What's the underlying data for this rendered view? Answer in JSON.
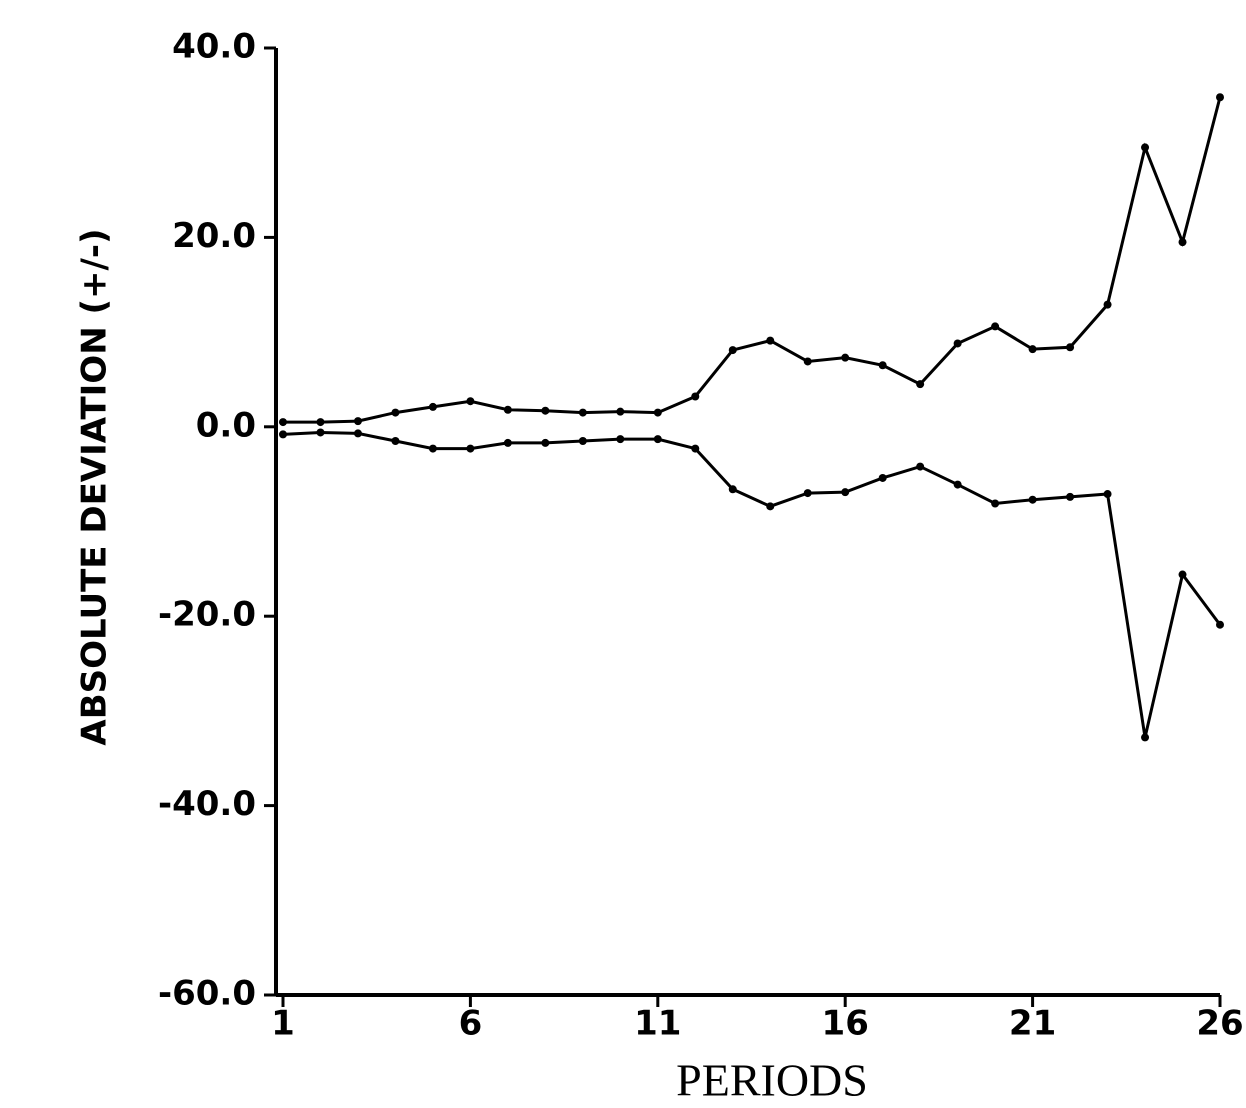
{
  "chart_data": {
    "type": "line",
    "y_label": "ABSOLUTE DEVIATION (+/-)",
    "x_label": "PERIODS",
    "x": [
      1,
      2,
      3,
      4,
      5,
      6,
      7,
      8,
      9,
      10,
      11,
      12,
      13,
      14,
      15,
      16,
      17,
      18,
      19,
      20,
      21,
      22,
      23,
      24,
      25,
      26
    ],
    "series": [
      {
        "color": "#000000",
        "values": [
          0.5,
          0.5,
          0.6,
          1.5,
          2.1,
          2.7,
          1.8,
          1.7,
          1.5,
          1.6,
          1.5,
          3.2,
          8.1,
          9.1,
          6.9,
          7.3,
          6.5,
          4.5,
          8.8,
          10.6,
          8.2,
          8.4,
          12.9,
          29.5,
          19.5,
          34.8
        ]
      },
      {
        "color": "#000000",
        "values": [
          -0.8,
          -0.6,
          -0.7,
          -1.5,
          -2.3,
          -2.3,
          -1.7,
          -1.7,
          -1.5,
          -1.3,
          -1.3,
          -2.3,
          -6.6,
          -8.4,
          -7.0,
          -6.9,
          -5.4,
          -4.2,
          -6.1,
          -8.1,
          -7.7,
          -7.4,
          -7.1,
          -32.8,
          -15.6,
          -20.9
        ]
      }
    ],
    "xlim": [
      1,
      26
    ],
    "xticks": [
      1,
      6,
      11,
      16,
      21,
      26
    ],
    "ylim": [
      -60,
      40
    ],
    "yticks": [
      {
        "value": 40,
        "label": "40.0"
      },
      {
        "value": 20,
        "label": "20.0"
      },
      {
        "value": 0,
        "label": "0.0"
      },
      {
        "value": -20,
        "label": "-20.0"
      },
      {
        "value": -40,
        "label": "-40.0"
      },
      {
        "value": -60,
        "label": "-60.0"
      }
    ]
  }
}
